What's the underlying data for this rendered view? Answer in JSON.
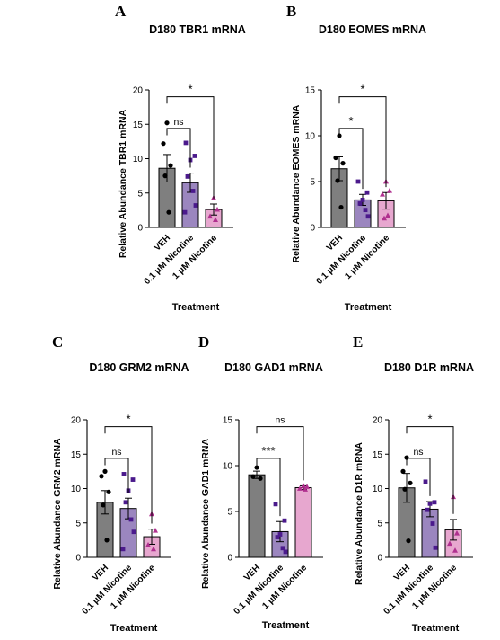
{
  "colors": {
    "veh": "#7f7f7f",
    "nic01": "#9b86bf",
    "nic1": "#e7a7cf",
    "dot_veh": "#000000",
    "dot_nic01": "#4b1a8c",
    "dot_nic1": "#b0308f"
  },
  "chart_data": [
    {
      "letter": "A",
      "type": "bar",
      "title": "D180 TBR1 mRNA",
      "ylabel": "Relative Abundance TBR1 mRNA",
      "xlabel": "Treatment",
      "ylim": [
        0,
        20
      ],
      "yticks": [
        0,
        5,
        10,
        15,
        20
      ],
      "categories": [
        "VEH",
        "0.1 μM Nicotine",
        "1 μM Nicotine"
      ],
      "means": [
        8.6,
        6.5,
        2.6
      ],
      "sem": [
        2.0,
        1.4,
        0.8
      ],
      "points": [
        [
          15.2,
          12.2,
          9.0,
          7.5,
          2.2
        ],
        [
          12.3,
          10.4,
          9.8,
          7.4,
          5.3,
          3.2,
          2.2
        ],
        [
          4.3,
          2.6,
          1.6,
          1.1
        ]
      ],
      "comparisons": [
        {
          "from": 0,
          "to": 2,
          "label": "*"
        },
        {
          "from": 0,
          "to": 1,
          "label": "ns"
        }
      ]
    },
    {
      "letter": "B",
      "type": "bar",
      "title": "D180 EOMES mRNA",
      "ylabel": "Relative Abundance EOMES mRNA",
      "xlabel": "Treatment",
      "ylim": [
        0,
        15
      ],
      "yticks": [
        0,
        5,
        10,
        15
      ],
      "categories": [
        "VEH",
        "0.1 μM Nicotine",
        "1 μM Nicotine"
      ],
      "means": [
        6.4,
        3.0,
        2.9
      ],
      "sem": [
        1.3,
        0.6,
        0.9
      ],
      "points": [
        [
          10.0,
          7.6,
          7.0,
          5.1,
          2.2
        ],
        [
          5.0,
          3.8,
          3.0,
          2.6,
          1.9,
          1.2
        ],
        [
          5.0,
          4.0,
          3.6,
          1.3,
          1.0
        ]
      ],
      "comparisons": [
        {
          "from": 0,
          "to": 2,
          "label": "*"
        },
        {
          "from": 0,
          "to": 1,
          "label": "*"
        }
      ]
    },
    {
      "letter": "C",
      "type": "bar",
      "title": "D180 GRM2 mRNA",
      "ylabel": "Relative Abundance GRM2 mRNA",
      "xlabel": "Treatment",
      "ylim": [
        0,
        20
      ],
      "yticks": [
        0,
        5,
        10,
        15,
        20
      ],
      "categories": [
        "VEH",
        "0.1 μM Nicotine",
        "1 μM Nicotine"
      ],
      "means": [
        8.0,
        7.1,
        3.0
      ],
      "sem": [
        1.7,
        1.5,
        1.1
      ],
      "points": [
        [
          12.5,
          11.8,
          9.5,
          7.6,
          2.5
        ],
        [
          12.1,
          11.3,
          9.7,
          8.0,
          5.5,
          3.7,
          1.2
        ],
        [
          6.3,
          3.9,
          1.8,
          1.2
        ]
      ],
      "comparisons": [
        {
          "from": 0,
          "to": 2,
          "label": "*"
        },
        {
          "from": 0,
          "to": 1,
          "label": "ns"
        }
      ]
    },
    {
      "letter": "D",
      "type": "bar",
      "title": "D180 GAD1 mRNA",
      "ylabel": "Relative Abundance GAD1 mRNA",
      "xlabel": "Treatment",
      "ylim": [
        0,
        15
      ],
      "yticks": [
        0,
        5,
        10,
        15
      ],
      "categories": [
        "VEH",
        "0.1 μM Nicotine",
        "1 μM Nicotine"
      ],
      "means": [
        9.0,
        2.8,
        7.6
      ],
      "sem": [
        0.4,
        1.1,
        0.2
      ],
      "points": [
        [
          9.8,
          8.8,
          8.6
        ],
        [
          5.8,
          4.0,
          2.5,
          2.2,
          1.0,
          0.6
        ],
        [
          7.8,
          7.7,
          7.5,
          7.4
        ]
      ],
      "comparisons": [
        {
          "from": 0,
          "to": 2,
          "label": "ns"
        },
        {
          "from": 0,
          "to": 1,
          "label": "***"
        }
      ]
    },
    {
      "letter": "E",
      "type": "bar",
      "title": "D180 D1R mRNA",
      "ylabel": "Relative Abundance D1R mRNA",
      "xlabel": "Treatment",
      "ylim": [
        0,
        20
      ],
      "yticks": [
        0,
        5,
        10,
        15,
        20
      ],
      "categories": [
        "VEH",
        "0.1 μM Nicotine",
        "1 μM Nicotine"
      ],
      "means": [
        10.1,
        7.0,
        4.0
      ],
      "sem": [
        2.1,
        1.1,
        1.5
      ],
      "points": [
        [
          14.5,
          12.5,
          10.8,
          9.9,
          2.4
        ],
        [
          11.0,
          8.0,
          7.8,
          6.9,
          4.9,
          1.4
        ],
        [
          8.8,
          3.5,
          2.0,
          1.0
        ]
      ],
      "comparisons": [
        {
          "from": 0,
          "to": 2,
          "label": "*"
        },
        {
          "from": 0,
          "to": 1,
          "label": "ns"
        }
      ]
    }
  ]
}
